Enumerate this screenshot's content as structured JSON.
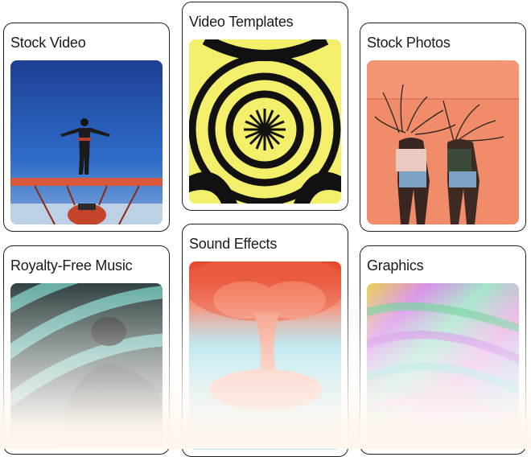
{
  "cards": [
    {
      "title": "Stock Video",
      "thumb_icon": "stock-video-thumbnail"
    },
    {
      "title": "Video Templates",
      "thumb_icon": "video-templates-thumbnail"
    },
    {
      "title": "Stock Photos",
      "thumb_icon": "stock-photos-thumbnail"
    },
    {
      "title": "Royalty-Free Music",
      "thumb_icon": "music-thumbnail"
    },
    {
      "title": "Sound Effects",
      "thumb_icon": "sound-effects-thumbnail"
    },
    {
      "title": "Graphics",
      "thumb_icon": "graphics-thumbnail"
    }
  ],
  "colors": {
    "border": "#1f1f1f",
    "fade": "#fff6ef",
    "sky": "#1e4fa8",
    "yellow": "#f3f064",
    "coral": "#f08a66"
  }
}
